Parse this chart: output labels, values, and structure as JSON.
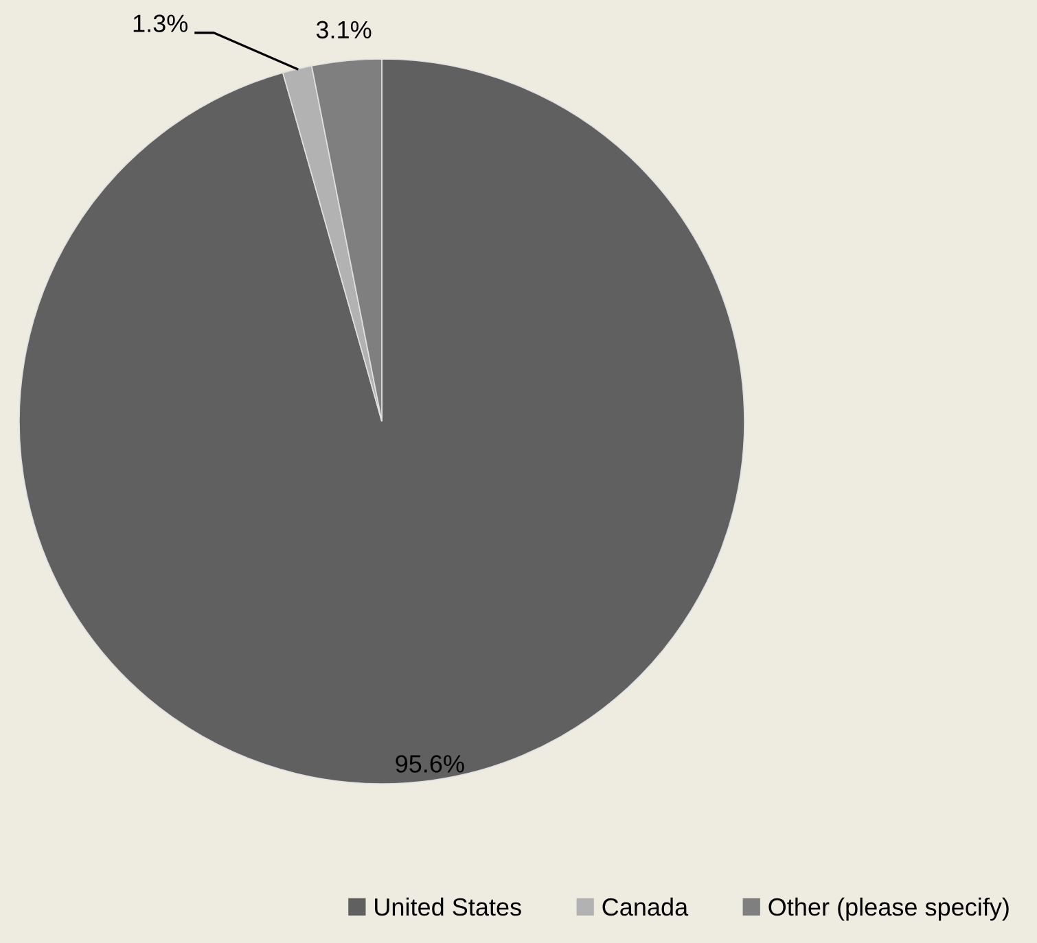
{
  "chart_data": {
    "type": "pie",
    "categories": [
      "United States",
      "Canada",
      "Other (please specify)"
    ],
    "values": [
      95.6,
      1.3,
      3.1
    ],
    "colors": [
      "#606060",
      "#b2b2b2",
      "#7f7f7f"
    ],
    "value_labels": [
      "95.6%",
      "1.3%",
      "3.1%"
    ],
    "legend": "bottom"
  }
}
